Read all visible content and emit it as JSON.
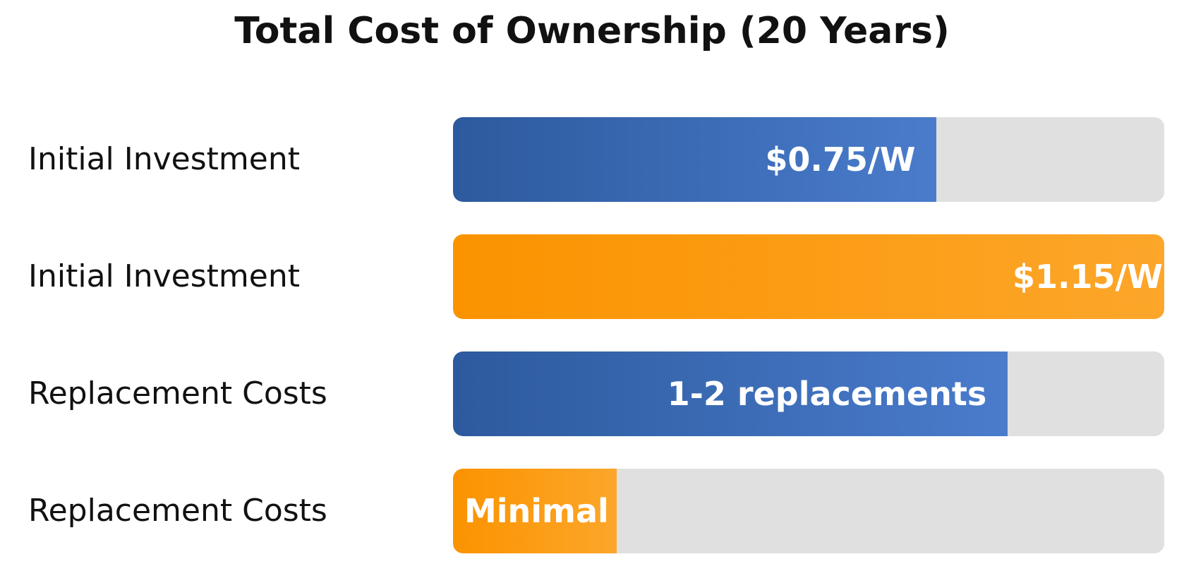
{
  "chart_data": {
    "type": "bar",
    "orientation": "horizontal",
    "title": "Total Cost of Ownership (20 Years)",
    "xlabel": "",
    "ylabel": "",
    "grid": false,
    "legend": "none",
    "categories": [
      "Initial Investment",
      "Initial Investment",
      "Replacement Costs",
      "Replacement Costs"
    ],
    "bars": [
      {
        "label": "Initial Investment",
        "value_text": "$0.75/W",
        "fill_fraction": 0.68,
        "color": "blue"
      },
      {
        "label": "Initial Investment",
        "value_text": "$1.15/W",
        "fill_fraction": 1.0,
        "color": "orange"
      },
      {
        "label": "Replacement Costs",
        "value_text": "1-2 replacements",
        "fill_fraction": 0.78,
        "color": "blue"
      },
      {
        "label": "Replacement Costs",
        "value_text": "Minimal",
        "fill_fraction": 0.23,
        "color": "orange"
      }
    ],
    "colors": {
      "blue_start": "#2d5a9e",
      "blue_end": "#4a7ccc",
      "orange_start": "#fb9300",
      "orange_end": "#fca62a",
      "track": "#e0e0e0"
    }
  }
}
